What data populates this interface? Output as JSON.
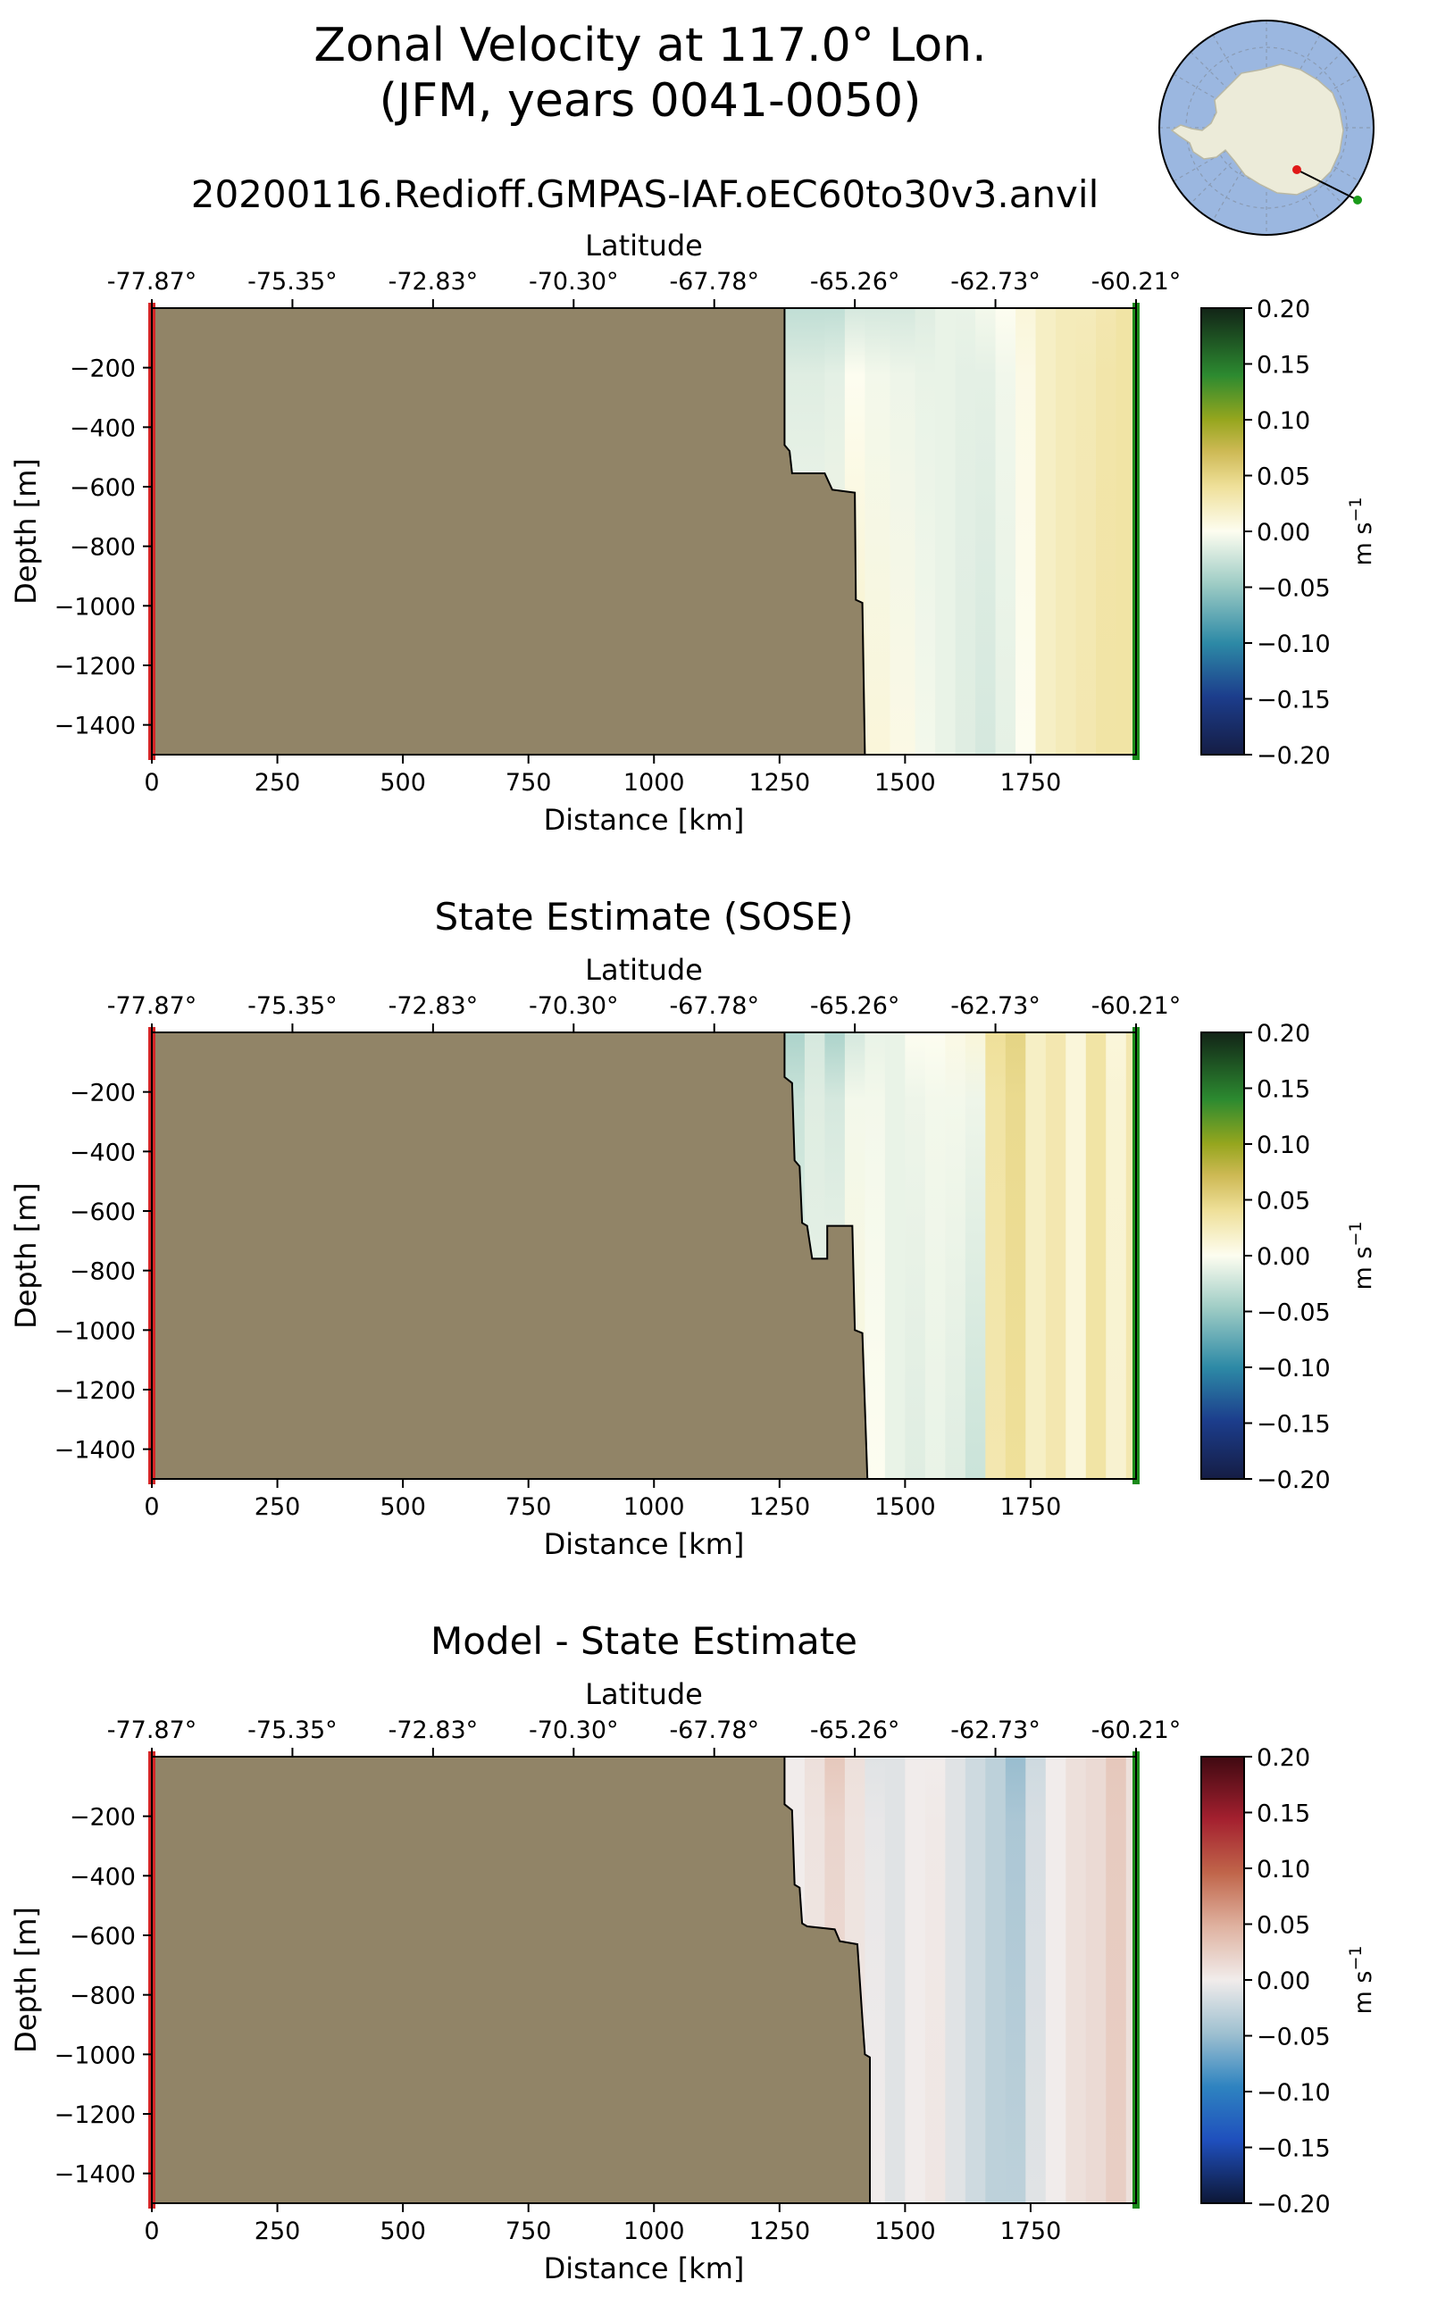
{
  "figure": {
    "title_line1": "Zonal Velocity at 117.0° Lon.",
    "title_line2": "(JFM, years 0041-0050)",
    "run_name": "20200116.Redioff.GMPAS-IAF.oEC60to30v3.anvil"
  },
  "colors": {
    "land": "#918467",
    "start_marker": "#d62728",
    "end_marker": "#1a8a1a",
    "ocean_map": "#9bb7e0",
    "continent_map": "#ecebd9"
  },
  "chart_data": [
    {
      "type": "heatmap",
      "title": "",
      "xlabel": "Distance [km]",
      "ylabel": "Depth [m]",
      "top_xlabel": "Latitude",
      "xlim": [
        0,
        1960
      ],
      "ylim": [
        -1500,
        0
      ],
      "xticks": [
        0,
        250,
        500,
        750,
        1000,
        1250,
        1500,
        1750
      ],
      "yticks": [
        -200,
        -400,
        -600,
        -800,
        -1000,
        -1200,
        -1400
      ],
      "top_ticks_km": [
        0,
        280,
        560,
        840,
        1120,
        1400,
        1680,
        1960
      ],
      "top_tick_labels": [
        "-77.87°",
        "-75.35°",
        "-72.83°",
        "-70.30°",
        "-67.78°",
        "-65.26°",
        "-62.73°",
        "-60.21°"
      ],
      "colorbar": {
        "cmap": "velocity",
        "vmin": -0.2,
        "vmax": 0.2,
        "ticks": [
          "0.20",
          "0.15",
          "0.10",
          "0.05",
          "0.00",
          "−0.05",
          "−0.10",
          "−0.15",
          "−0.20"
        ],
        "label": "m s",
        "label_exp": "−1"
      },
      "bathymetry": [
        [
          1260,
          0
        ],
        [
          1260,
          -460
        ],
        [
          1270,
          -480
        ],
        [
          1275,
          -555
        ],
        [
          1340,
          -555
        ],
        [
          1355,
          -610
        ],
        [
          1400,
          -620
        ],
        [
          1402,
          -980
        ],
        [
          1415,
          -990
        ],
        [
          1420,
          -1500
        ]
      ],
      "value_columns": {
        "x": [
          1260,
          1300,
          1340,
          1380,
          1420,
          1470,
          1520,
          1560,
          1600,
          1640,
          1680,
          1720,
          1760,
          1800,
          1840,
          1880,
          1920,
          1960
        ],
        "surface": [
          -0.03,
          -0.03,
          -0.03,
          -0.02,
          -0.02,
          -0.02,
          -0.015,
          -0.01,
          -0.01,
          -0.005,
          0.0,
          0.01,
          0.02,
          0.025,
          0.025,
          0.03,
          0.035,
          0.04
        ],
        "deep": [
          0.0,
          0.0,
          0.005,
          0.02,
          0.01,
          0.005,
          -0.005,
          -0.01,
          -0.015,
          -0.02,
          -0.012,
          0.0,
          0.02,
          0.025,
          0.03,
          0.035,
          0.035,
          0.04
        ]
      }
    },
    {
      "type": "heatmap",
      "title": "State Estimate (SOSE)",
      "xlabel": "Distance [km]",
      "ylabel": "Depth [m]",
      "top_xlabel": "Latitude",
      "xlim": [
        0,
        1960
      ],
      "ylim": [
        -1500,
        0
      ],
      "xticks": [
        0,
        250,
        500,
        750,
        1000,
        1250,
        1500,
        1750
      ],
      "yticks": [
        -200,
        -400,
        -600,
        -800,
        -1000,
        -1200,
        -1400
      ],
      "top_ticks_km": [
        0,
        280,
        560,
        840,
        1120,
        1400,
        1680,
        1960
      ],
      "top_tick_labels": [
        "-77.87°",
        "-75.35°",
        "-72.83°",
        "-70.30°",
        "-67.78°",
        "-65.26°",
        "-62.73°",
        "-60.21°"
      ],
      "colorbar": {
        "cmap": "velocity",
        "vmin": -0.2,
        "vmax": 0.2,
        "ticks": [
          "0.20",
          "0.15",
          "0.10",
          "0.05",
          "0.00",
          "−0.05",
          "−0.10",
          "−0.15",
          "−0.20"
        ],
        "label": "m s",
        "label_exp": "−1"
      },
      "bathymetry": [
        [
          1260,
          0
        ],
        [
          1260,
          -150
        ],
        [
          1275,
          -170
        ],
        [
          1280,
          -430
        ],
        [
          1290,
          -450
        ],
        [
          1295,
          -640
        ],
        [
          1305,
          -650
        ],
        [
          1315,
          -760
        ],
        [
          1345,
          -760
        ],
        [
          1345,
          -650
        ],
        [
          1395,
          -650
        ],
        [
          1400,
          -1000
        ],
        [
          1415,
          -1010
        ],
        [
          1425,
          -1500
        ]
      ],
      "value_columns": {
        "x": [
          1260,
          1300,
          1340,
          1380,
          1420,
          1460,
          1500,
          1540,
          1580,
          1620,
          1660,
          1700,
          1740,
          1780,
          1820,
          1860,
          1900,
          1940,
          1960
        ],
        "surface": [
          -0.04,
          -0.02,
          -0.04,
          -0.02,
          -0.01,
          -0.01,
          0.0,
          0.0,
          0.005,
          0.01,
          0.04,
          0.05,
          0.02,
          0.03,
          0.01,
          0.035,
          0.01,
          0.03,
          0.03
        ],
        "deep": [
          -0.01,
          -0.01,
          0.0,
          0.01,
          0.0,
          -0.01,
          -0.015,
          -0.01,
          -0.015,
          -0.025,
          0.03,
          0.04,
          0.02,
          0.03,
          0.01,
          0.035,
          0.015,
          0.03,
          0.03
        ]
      }
    },
    {
      "type": "heatmap",
      "title": "Model - State Estimate",
      "xlabel": "Distance [km]",
      "ylabel": "Depth [m]",
      "top_xlabel": "Latitude",
      "xlim": [
        0,
        1960
      ],
      "ylim": [
        -1500,
        0
      ],
      "xticks": [
        0,
        250,
        500,
        750,
        1000,
        1250,
        1500,
        1750
      ],
      "yticks": [
        -200,
        -400,
        -600,
        -800,
        -1000,
        -1200,
        -1400
      ],
      "top_ticks_km": [
        0,
        280,
        560,
        840,
        1120,
        1400,
        1680,
        1960
      ],
      "top_tick_labels": [
        "-77.87°",
        "-75.35°",
        "-72.83°",
        "-70.30°",
        "-67.78°",
        "-65.26°",
        "-62.73°",
        "-60.21°"
      ],
      "colorbar": {
        "cmap": "difference",
        "vmin": -0.2,
        "vmax": 0.2,
        "ticks": [
          "0.20",
          "0.15",
          "0.10",
          "0.05",
          "0.00",
          "−0.05",
          "−0.10",
          "−0.15",
          "−0.20"
        ],
        "label": "m s",
        "label_exp": "−1"
      },
      "bathymetry": [
        [
          1260,
          0
        ],
        [
          1260,
          -160
        ],
        [
          1275,
          -180
        ],
        [
          1280,
          -430
        ],
        [
          1290,
          -440
        ],
        [
          1295,
          -560
        ],
        [
          1305,
          -570
        ],
        [
          1360,
          -580
        ],
        [
          1370,
          -620
        ],
        [
          1405,
          -630
        ],
        [
          1415,
          -880
        ],
        [
          1420,
          -1000
        ],
        [
          1430,
          -1010
        ],
        [
          1430,
          -1500
        ]
      ],
      "value_columns": {
        "x": [
          1260,
          1300,
          1340,
          1380,
          1420,
          1460,
          1500,
          1540,
          1580,
          1620,
          1660,
          1700,
          1740,
          1780,
          1820,
          1860,
          1900,
          1940,
          1960
        ],
        "surface": [
          0.0,
          0.01,
          0.03,
          0.01,
          -0.01,
          -0.01,
          0.0,
          0.0,
          -0.01,
          -0.02,
          -0.03,
          -0.05,
          -0.02,
          0.0,
          0.01,
          0.015,
          0.03,
          0.01,
          0.0
        ],
        "deep": [
          0.0,
          0.005,
          0.01,
          0.005,
          0.0,
          -0.01,
          0.0,
          0.005,
          -0.01,
          -0.02,
          -0.03,
          -0.03,
          -0.01,
          0.0,
          0.01,
          0.015,
          0.025,
          0.01,
          0.0
        ]
      }
    }
  ]
}
